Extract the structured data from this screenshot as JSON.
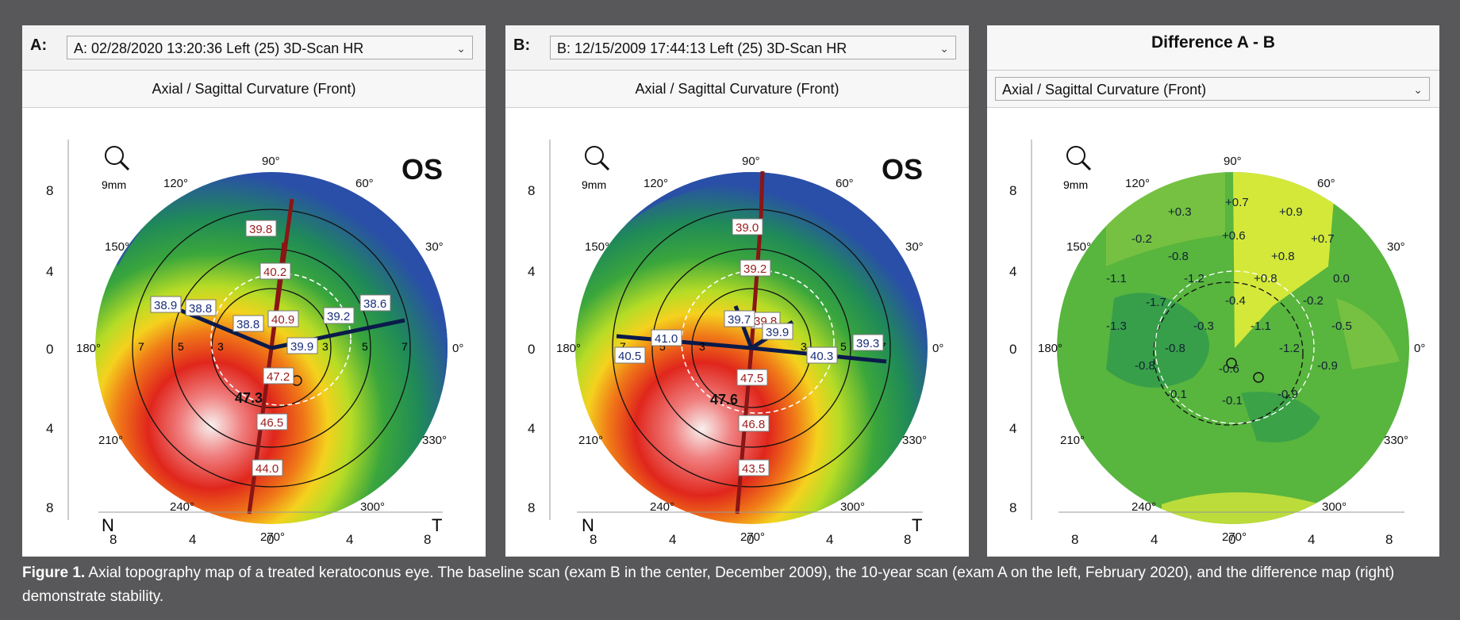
{
  "panels": {
    "a": {
      "letter": "A:",
      "exam_select": "A: 02/28/2020  13:20:36  Left    (25) 3D-Scan HR",
      "map_type": "Axial / Sagittal Curvature (Front)",
      "eye": "OS",
      "zoom_label": "9mm",
      "side_left": "N",
      "side_right": "T",
      "peak_value": "47.3",
      "values": [
        "39.8",
        "40.2",
        "40.9",
        "38.9",
        "38.8",
        "38.8",
        "39.2",
        "38.6",
        "39.9",
        "47.2",
        "46.5",
        "44.0"
      ]
    },
    "b": {
      "letter": "B:",
      "exam_select": "B: 12/15/2009  17:44:13  Left    (25) 3D-Scan HR",
      "map_type": "Axial / Sagittal Curvature (Front)",
      "eye": "OS",
      "zoom_label": "9mm",
      "side_left": "N",
      "side_right": "T",
      "peak_value": "47.6",
      "values": [
        "39.0",
        "39.2",
        "39.8",
        "39.7",
        "39.9",
        "41.0",
        "40.5",
        "40.3",
        "39.3",
        "47.5",
        "46.8",
        "43.5"
      ]
    },
    "c": {
      "title": "Difference A - B",
      "map_type_select": "Axial / Sagittal Curvature (Front)",
      "zoom_label": "9mm",
      "values": [
        "+0.7",
        "+0.3",
        "+0.9",
        "+0.6",
        "-0.2",
        "+0.7",
        "-0.8",
        "+0.8",
        "-1.1",
        "-1.2",
        "+0.8",
        "0.0",
        "-1.7",
        "-0.4",
        "-0.2",
        "-1.3",
        "-0.3",
        "-1.1",
        "-0.5",
        "-0.8",
        "-1.2",
        "-0.8",
        "-0.6",
        "-0.9",
        "-0.1",
        "-0.1",
        "-0.9"
      ]
    }
  },
  "angle_labels": [
    "90°",
    "60°",
    "30°",
    "0°",
    "330°",
    "300°",
    "270°",
    "240°",
    "210°",
    "180°",
    "150°",
    "120°"
  ],
  "ring_labels": [
    "7",
    "5",
    "3",
    "3",
    "5",
    "7"
  ],
  "vertical_ticks": [
    "8",
    "4",
    "0",
    "4",
    "8"
  ],
  "horizontal_ticks": [
    "8",
    "4",
    "0",
    "4",
    "8"
  ],
  "caption": {
    "lead": "Figure 1.",
    "text": " Axial topography map of a treated keratoconus eye. The baseline scan (exam B in the center, December 2009), the 10-year scan (exam A on the left, February 2020), and the difference map (right) demonstrate stability."
  },
  "colors": {
    "background": "#58585a",
    "flat": "#2a4fa8",
    "steep": "#e0261c",
    "mid": "#3aa63c"
  }
}
